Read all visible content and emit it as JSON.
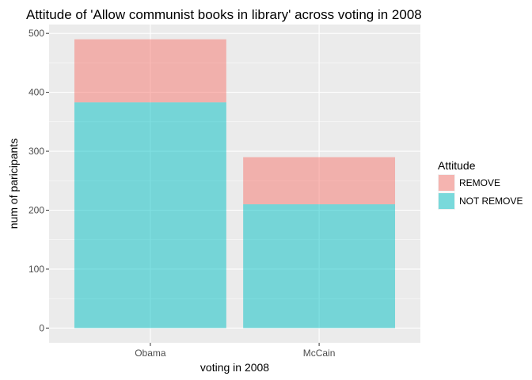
{
  "chart_data": {
    "type": "bar",
    "stacked": true,
    "title": "Attitude of 'Allow communist books in library' across voting in 2008",
    "xlabel": "voting in 2008",
    "ylabel": "num of paricipants",
    "categories": [
      "Obama",
      "McCain"
    ],
    "series": [
      {
        "name": "NOT REMOVE",
        "values": [
          383,
          210
        ],
        "color": "#00bfc4"
      },
      {
        "name": "REMOVE",
        "values": [
          107,
          80
        ],
        "color": "#f8766d"
      }
    ],
    "ylim": [
      -25,
      515
    ],
    "yticks": [
      0,
      100,
      200,
      300,
      400,
      500
    ],
    "grid": true,
    "bar_opacity": 0.5,
    "legend": {
      "title": "Attitude",
      "placement": "right",
      "entries": [
        {
          "label": "REMOVE",
          "color": "#f8766d"
        },
        {
          "label": "NOT REMOVE",
          "color": "#00bfc4"
        }
      ]
    }
  },
  "colors": {
    "panel_background": "#ebebeb",
    "grid_major": "#ffffff",
    "tick_mark": "#333333"
  }
}
